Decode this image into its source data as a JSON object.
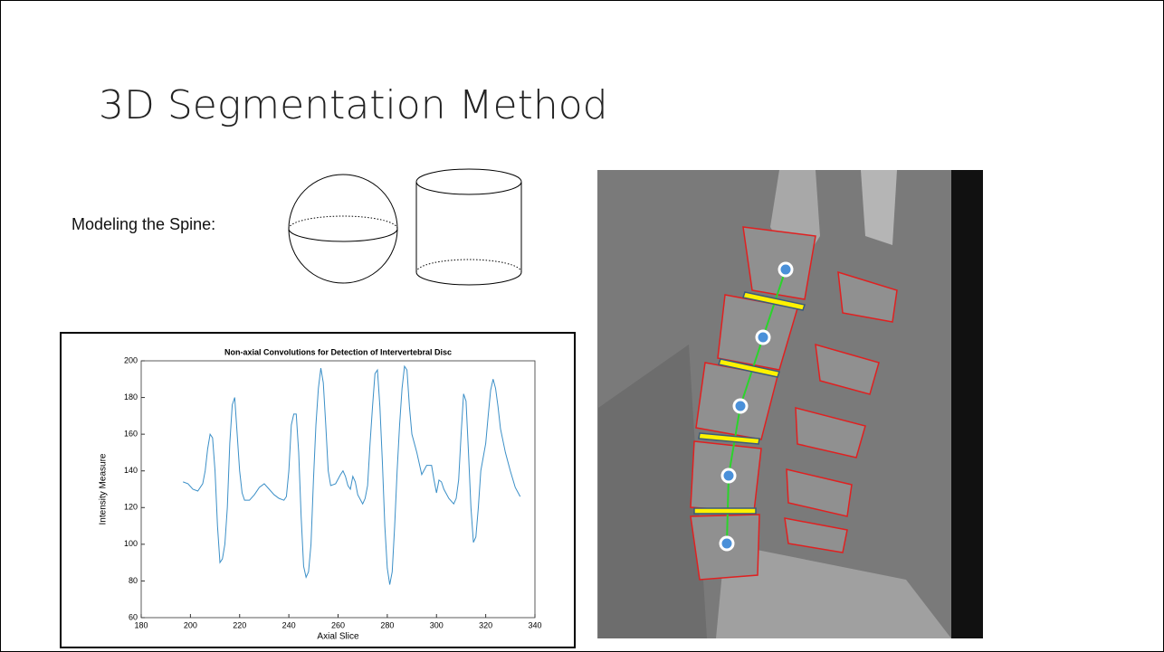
{
  "slide": {
    "title": "3D Segmentation Method",
    "label": "Modeling the Spine:"
  },
  "chart_data": {
    "type": "line",
    "title": "Non-axial Convolutions for Detection of Intervertebral Disc",
    "x_label": "Axial Slice",
    "y_label": "Intensity Measure",
    "xlim": [
      180,
      340
    ],
    "xticks": [
      180,
      200,
      220,
      240,
      260,
      280,
      300,
      320,
      340
    ],
    "ylim": [
      60,
      200
    ],
    "yticks": [
      60,
      80,
      100,
      120,
      140,
      160,
      180,
      200
    ],
    "series": [
      {
        "color": "#3b8fc7",
        "x": [
          197,
          199,
          201,
          203,
          205,
          206,
          207,
          208,
          209,
          210,
          211,
          212,
          213,
          214,
          215,
          216,
          217,
          218,
          219,
          220,
          221,
          222,
          224,
          226,
          228,
          230,
          232,
          234,
          236,
          238,
          239,
          240,
          241,
          242,
          243,
          244,
          245,
          246,
          247,
          248,
          249,
          250,
          251,
          252,
          253,
          254,
          255,
          256,
          257,
          259,
          261,
          262,
          263,
          264,
          265,
          266,
          267,
          268,
          270,
          271,
          272,
          273,
          274,
          275,
          276,
          277,
          278,
          279,
          280,
          281,
          282,
          283,
          284,
          285,
          286,
          287,
          288,
          289,
          290,
          292,
          294,
          296,
          298,
          299,
          300,
          301,
          302,
          303,
          305,
          307,
          308,
          309,
          310,
          311,
          312,
          313,
          314,
          315,
          316,
          317,
          318,
          320,
          321,
          322,
          323,
          324,
          325,
          326,
          328,
          330,
          332,
          334
        ],
        "values": [
          134,
          133,
          130,
          129,
          133,
          140,
          152,
          160,
          158,
          140,
          110,
          90,
          92,
          100,
          120,
          155,
          176,
          180,
          160,
          140,
          128,
          124,
          124,
          127,
          131,
          133,
          130,
          127,
          125,
          124,
          126,
          140,
          165,
          171,
          171,
          150,
          115,
          88,
          82,
          85,
          100,
          135,
          165,
          185,
          196,
          188,
          165,
          140,
          132,
          133,
          138,
          140,
          137,
          132,
          130,
          137,
          134,
          127,
          122,
          125,
          132,
          155,
          175,
          193,
          195,
          175,
          145,
          110,
          87,
          78,
          85,
          110,
          140,
          165,
          185,
          197,
          195,
          175,
          160,
          150,
          138,
          143,
          143,
          135,
          128,
          135,
          134,
          130,
          125,
          122,
          125,
          135,
          160,
          182,
          178,
          150,
          120,
          101,
          104,
          120,
          140,
          155,
          170,
          184,
          190,
          185,
          175,
          163,
          150,
          140,
          131,
          126
        ]
      }
    ]
  }
}
